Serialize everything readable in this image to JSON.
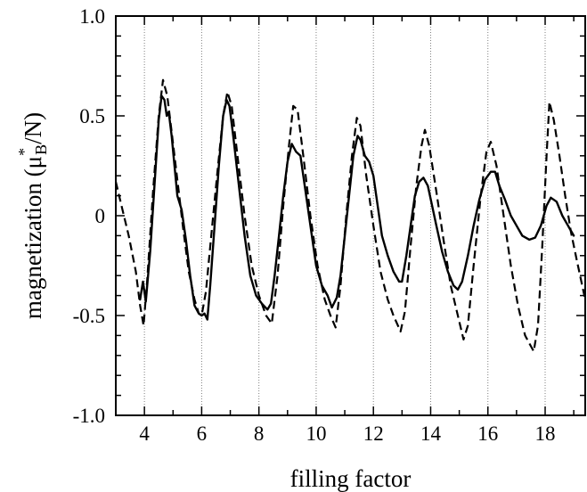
{
  "chart_data": {
    "type": "line",
    "xlabel": "filling factor",
    "ylabel": {
      "main": "magnetization (μ",
      "sub": "B",
      "sup": "*",
      "tail": "/N)"
    },
    "xlim": [
      3,
      19.4
    ],
    "ylim": [
      -1.0,
      1.0
    ],
    "x_ticks": [
      4,
      6,
      8,
      10,
      12,
      14,
      16,
      18
    ],
    "y_ticks": [
      {
        "value": 1.0,
        "label": "1.0"
      },
      {
        "value": 0.5,
        "label": "0.5"
      },
      {
        "value": 0,
        "label": "0"
      },
      {
        "value": -0.5,
        "label": "-0.5"
      },
      {
        "value": -1.0,
        "label": "-1.0"
      }
    ],
    "vertical_gridlines": [
      4,
      6,
      8,
      10,
      12,
      14,
      16,
      18
    ],
    "series": [
      {
        "style": "solid",
        "color": "#000000",
        "points": [
          [
            3.85,
            -0.42
          ],
          [
            3.95,
            -0.33
          ],
          [
            4.05,
            -0.43
          ],
          [
            4.2,
            -0.18
          ],
          [
            4.35,
            0.15
          ],
          [
            4.5,
            0.48
          ],
          [
            4.6,
            0.6
          ],
          [
            4.7,
            0.58
          ],
          [
            4.78,
            0.5
          ],
          [
            4.85,
            0.52
          ],
          [
            4.95,
            0.4
          ],
          [
            5.05,
            0.25
          ],
          [
            5.15,
            0.1
          ],
          [
            5.3,
            0.03
          ],
          [
            5.45,
            -0.12
          ],
          [
            5.6,
            -0.3
          ],
          [
            5.75,
            -0.45
          ],
          [
            5.9,
            -0.49
          ],
          [
            6.0,
            -0.5
          ],
          [
            6.1,
            -0.49
          ],
          [
            6.2,
            -0.52
          ],
          [
            6.3,
            -0.35
          ],
          [
            6.45,
            -0.05
          ],
          [
            6.6,
            0.25
          ],
          [
            6.75,
            0.5
          ],
          [
            6.87,
            0.58
          ],
          [
            6.97,
            0.55
          ],
          [
            7.1,
            0.4
          ],
          [
            7.3,
            0.15
          ],
          [
            7.5,
            -0.1
          ],
          [
            7.7,
            -0.3
          ],
          [
            7.9,
            -0.4
          ],
          [
            8.1,
            -0.44
          ],
          [
            8.3,
            -0.47
          ],
          [
            8.42,
            -0.44
          ],
          [
            8.55,
            -0.3
          ],
          [
            8.7,
            -0.1
          ],
          [
            8.85,
            0.1
          ],
          [
            9.0,
            0.27
          ],
          [
            9.15,
            0.36
          ],
          [
            9.3,
            0.32
          ],
          [
            9.45,
            0.3
          ],
          [
            9.55,
            0.2
          ],
          [
            9.7,
            0.05
          ],
          [
            9.85,
            -0.1
          ],
          [
            10.0,
            -0.25
          ],
          [
            10.2,
            -0.35
          ],
          [
            10.4,
            -0.4
          ],
          [
            10.55,
            -0.46
          ],
          [
            10.72,
            -0.41
          ],
          [
            10.85,
            -0.3
          ],
          [
            11.0,
            -0.1
          ],
          [
            11.15,
            0.1
          ],
          [
            11.3,
            0.3
          ],
          [
            11.45,
            0.4
          ],
          [
            11.55,
            0.38
          ],
          [
            11.7,
            0.3
          ],
          [
            11.85,
            0.27
          ],
          [
            12.0,
            0.2
          ],
          [
            12.15,
            0.05
          ],
          [
            12.3,
            -0.1
          ],
          [
            12.5,
            -0.2
          ],
          [
            12.7,
            -0.28
          ],
          [
            12.9,
            -0.33
          ],
          [
            13.0,
            -0.33
          ],
          [
            13.15,
            -0.2
          ],
          [
            13.3,
            -0.05
          ],
          [
            13.45,
            0.1
          ],
          [
            13.6,
            0.17
          ],
          [
            13.75,
            0.19
          ],
          [
            13.9,
            0.15
          ],
          [
            14.05,
            0.05
          ],
          [
            14.2,
            -0.05
          ],
          [
            14.4,
            -0.18
          ],
          [
            14.6,
            -0.28
          ],
          [
            14.8,
            -0.35
          ],
          [
            14.95,
            -0.37
          ],
          [
            15.1,
            -0.33
          ],
          [
            15.3,
            -0.2
          ],
          [
            15.5,
            -0.05
          ],
          [
            15.7,
            0.08
          ],
          [
            15.9,
            0.18
          ],
          [
            16.1,
            0.22
          ],
          [
            16.25,
            0.22
          ],
          [
            16.4,
            0.15
          ],
          [
            16.6,
            0.08
          ],
          [
            16.8,
            0.0
          ],
          [
            17.0,
            -0.05
          ],
          [
            17.2,
            -0.1
          ],
          [
            17.45,
            -0.12
          ],
          [
            17.65,
            -0.11
          ],
          [
            17.85,
            -0.05
          ],
          [
            18.05,
            0.05
          ],
          [
            18.2,
            0.09
          ],
          [
            18.4,
            0.07
          ],
          [
            18.6,
            0.0
          ],
          [
            18.8,
            -0.05
          ],
          [
            19.0,
            -0.1
          ]
        ]
      },
      {
        "style": "dashed",
        "color": "#000000",
        "points": [
          [
            3.0,
            0.17
          ],
          [
            3.2,
            0.05
          ],
          [
            3.45,
            -0.1
          ],
          [
            3.7,
            -0.28
          ],
          [
            3.85,
            -0.45
          ],
          [
            3.97,
            -0.55
          ],
          [
            4.1,
            -0.32
          ],
          [
            4.3,
            0.12
          ],
          [
            4.5,
            0.5
          ],
          [
            4.65,
            0.68
          ],
          [
            4.8,
            0.6
          ],
          [
            4.95,
            0.42
          ],
          [
            5.15,
            0.18
          ],
          [
            5.35,
            -0.06
          ],
          [
            5.55,
            -0.28
          ],
          [
            5.75,
            -0.42
          ],
          [
            5.9,
            -0.49
          ],
          [
            6.0,
            -0.5
          ],
          [
            6.15,
            -0.38
          ],
          [
            6.35,
            -0.08
          ],
          [
            6.55,
            0.22
          ],
          [
            6.75,
            0.5
          ],
          [
            6.9,
            0.62
          ],
          [
            7.05,
            0.55
          ],
          [
            7.25,
            0.3
          ],
          [
            7.5,
            0.0
          ],
          [
            7.75,
            -0.25
          ],
          [
            8.0,
            -0.4
          ],
          [
            8.25,
            -0.5
          ],
          [
            8.45,
            -0.54
          ],
          [
            8.65,
            -0.3
          ],
          [
            8.85,
            0.05
          ],
          [
            9.05,
            0.35
          ],
          [
            9.2,
            0.55
          ],
          [
            9.35,
            0.53
          ],
          [
            9.55,
            0.3
          ],
          [
            9.8,
            0.0
          ],
          [
            10.05,
            -0.25
          ],
          [
            10.3,
            -0.42
          ],
          [
            10.5,
            -0.5
          ],
          [
            10.68,
            -0.56
          ],
          [
            10.85,
            -0.35
          ],
          [
            11.05,
            0.0
          ],
          [
            11.25,
            0.3
          ],
          [
            11.42,
            0.49
          ],
          [
            11.55,
            0.45
          ],
          [
            11.75,
            0.2
          ],
          [
            12.0,
            -0.05
          ],
          [
            12.25,
            -0.28
          ],
          [
            12.5,
            -0.42
          ],
          [
            12.7,
            -0.5
          ],
          [
            12.95,
            -0.58
          ],
          [
            13.1,
            -0.48
          ],
          [
            13.3,
            -0.15
          ],
          [
            13.5,
            0.15
          ],
          [
            13.68,
            0.35
          ],
          [
            13.8,
            0.43
          ],
          [
            13.95,
            0.35
          ],
          [
            14.2,
            0.12
          ],
          [
            14.45,
            -0.12
          ],
          [
            14.7,
            -0.35
          ],
          [
            14.95,
            -0.5
          ],
          [
            15.15,
            -0.62
          ],
          [
            15.3,
            -0.55
          ],
          [
            15.5,
            -0.25
          ],
          [
            15.75,
            0.1
          ],
          [
            15.95,
            0.32
          ],
          [
            16.1,
            0.37
          ],
          [
            16.3,
            0.25
          ],
          [
            16.55,
            0.0
          ],
          [
            16.8,
            -0.25
          ],
          [
            17.05,
            -0.45
          ],
          [
            17.3,
            -0.6
          ],
          [
            17.6,
            -0.68
          ],
          [
            17.75,
            -0.55
          ],
          [
            17.9,
            -0.15
          ],
          [
            18.05,
            0.3
          ],
          [
            18.15,
            0.57
          ],
          [
            18.3,
            0.48
          ],
          [
            18.5,
            0.3
          ],
          [
            18.7,
            0.1
          ],
          [
            18.9,
            -0.08
          ],
          [
            19.1,
            -0.22
          ],
          [
            19.4,
            -0.42
          ]
        ]
      }
    ]
  }
}
